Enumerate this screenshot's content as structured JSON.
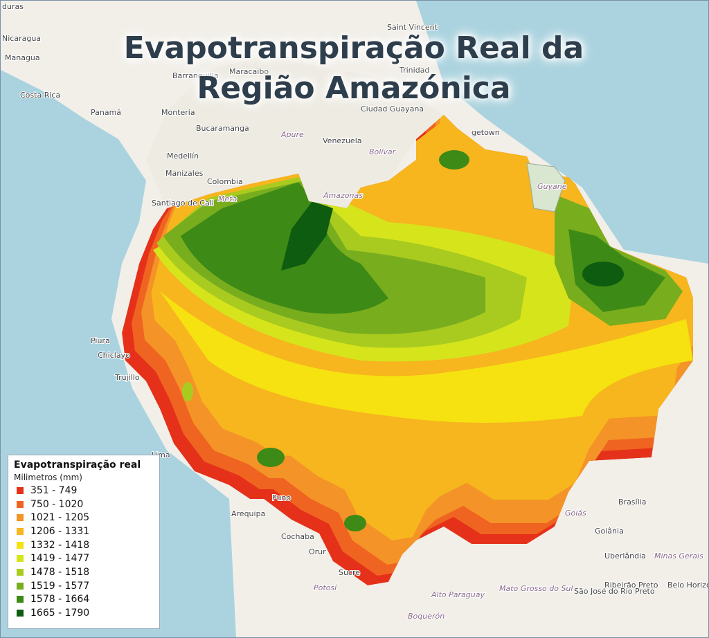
{
  "title": "Evapotranspiração Real da Região Amazónica",
  "legend": {
    "title": "Evapotranspiração real",
    "subtitle": "Milimetros (mm)",
    "items": [
      {
        "label": "351 - 749",
        "color": "#e5311a"
      },
      {
        "label": "750 - 1020",
        "color": "#ef6421"
      },
      {
        "label": "1021 - 1205",
        "color": "#f49327"
      },
      {
        "label": "1206 - 1331",
        "color": "#f7b51e"
      },
      {
        "label": "1332 - 1418",
        "color": "#f5e210"
      },
      {
        "label": "1419 - 1477",
        "color": "#d6e41c"
      },
      {
        "label": "1478 - 1518",
        "color": "#a9cb1f"
      },
      {
        "label": "1519 - 1577",
        "color": "#78ad1e"
      },
      {
        "label": "1578 - 1664",
        "color": "#3e8a16"
      },
      {
        "label": "1665 - 1790",
        "color": "#0e5c10"
      }
    ]
  },
  "places": [
    "duras",
    "Nicaragua",
    "Managua",
    "Costa Rica",
    "Panamá",
    "Saint Vincent",
    "Trinidad",
    "Barranquilla",
    "Maracaibo",
    "Montería",
    "Bucaramanga",
    "Apure",
    "Venezuela",
    "Bolívar",
    "Ciudad Guayana",
    "getown",
    "Medellín",
    "Manizales",
    "Colombia",
    "Santiago de Cali",
    "Meta",
    "Amazonas",
    "Guyane",
    "Piura",
    "Chiclayo",
    "Trujillo",
    "Lima",
    "Puno",
    "Arequipa",
    "Cochaba",
    "Orur",
    "Sucre",
    "Potosí",
    "Alto Paraguay",
    "Mato Grosso do Sul",
    "Boquerón",
    "São José do Rio Preto",
    "Ribeirão Preto",
    "Belo Horizo",
    "Brasília",
    "Goiás",
    "Goiânia",
    "Uberlândia",
    "Minas Gerais"
  ]
}
